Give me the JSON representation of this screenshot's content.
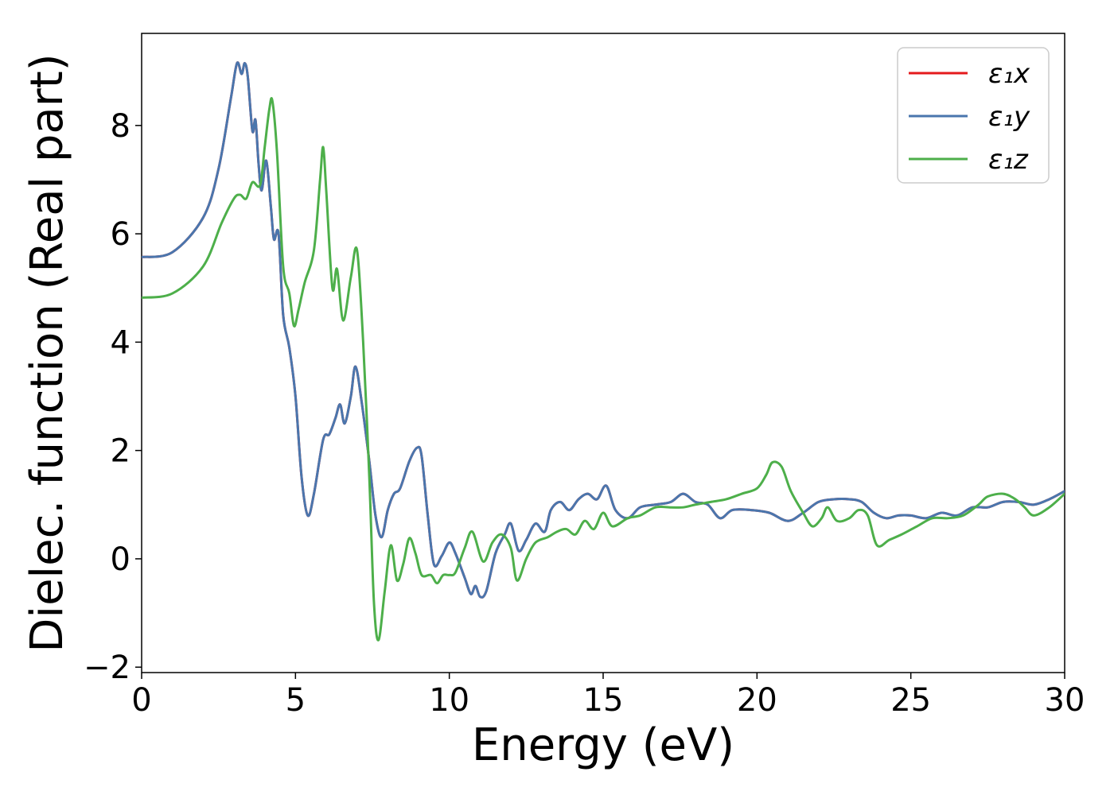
{
  "chart_data": {
    "type": "line",
    "title": "",
    "xlabel": "Energy (eV)",
    "ylabel": "Dielec. function (Real part)",
    "xlim": [
      0,
      30
    ],
    "ylim": [
      -2.1,
      9.7
    ],
    "xticks": [
      0,
      5,
      10,
      15,
      20,
      25,
      30
    ],
    "xtick_labels": [
      "0",
      "5",
      "10",
      "15",
      "20",
      "25",
      "30"
    ],
    "yticks": [
      -2,
      0,
      2,
      4,
      6,
      8
    ],
    "ytick_labels": [
      "−2",
      "0",
      "2",
      "4",
      "6",
      "8"
    ],
    "grid": false,
    "legend_position": "top-right",
    "series": [
      {
        "name": "ε₁x",
        "color": "#e41a1c",
        "points": [
          [
            0,
            5.57
          ],
          [
            1,
            5.66
          ],
          [
            2,
            6.3
          ],
          [
            2.5,
            7.2
          ],
          [
            2.9,
            8.5
          ],
          [
            3.1,
            9.15
          ],
          [
            3.25,
            8.95
          ],
          [
            3.35,
            9.15
          ],
          [
            3.45,
            8.9
          ],
          [
            3.6,
            7.9
          ],
          [
            3.7,
            8.1
          ],
          [
            3.8,
            7.3
          ],
          [
            3.9,
            6.8
          ],
          [
            4.05,
            7.35
          ],
          [
            4.2,
            6.5
          ],
          [
            4.3,
            5.9
          ],
          [
            4.45,
            6.0
          ],
          [
            4.6,
            4.5
          ],
          [
            4.8,
            3.9
          ],
          [
            5.0,
            3.0
          ],
          [
            5.2,
            1.5
          ],
          [
            5.4,
            0.8
          ],
          [
            5.6,
            1.2
          ],
          [
            5.9,
            2.2
          ],
          [
            6.1,
            2.3
          ],
          [
            6.3,
            2.6
          ],
          [
            6.45,
            2.85
          ],
          [
            6.6,
            2.5
          ],
          [
            6.8,
            3.0
          ],
          [
            6.95,
            3.55
          ],
          [
            7.15,
            2.9
          ],
          [
            7.4,
            1.8
          ],
          [
            7.6,
            0.8
          ],
          [
            7.8,
            0.4
          ],
          [
            8.0,
            0.9
          ],
          [
            8.2,
            1.2
          ],
          [
            8.4,
            1.3
          ],
          [
            8.7,
            1.8
          ],
          [
            8.95,
            2.05
          ],
          [
            9.1,
            1.9
          ],
          [
            9.3,
            0.8
          ],
          [
            9.5,
            -0.1
          ],
          [
            9.75,
            0.05
          ],
          [
            10.0,
            0.3
          ],
          [
            10.2,
            0.1
          ],
          [
            10.5,
            -0.35
          ],
          [
            10.7,
            -0.65
          ],
          [
            10.85,
            -0.5
          ],
          [
            11.0,
            -0.7
          ],
          [
            11.2,
            -0.6
          ],
          [
            11.5,
            0.1
          ],
          [
            11.8,
            0.45
          ],
          [
            12.0,
            0.65
          ],
          [
            12.25,
            0.15
          ],
          [
            12.5,
            0.35
          ],
          [
            12.8,
            0.65
          ],
          [
            13.1,
            0.5
          ],
          [
            13.3,
            0.9
          ],
          [
            13.6,
            1.05
          ],
          [
            13.9,
            0.9
          ],
          [
            14.2,
            1.1
          ],
          [
            14.5,
            1.2
          ],
          [
            14.8,
            1.1
          ],
          [
            15.1,
            1.35
          ],
          [
            15.4,
            0.9
          ],
          [
            15.8,
            0.75
          ],
          [
            16.2,
            0.95
          ],
          [
            16.7,
            1.0
          ],
          [
            17.2,
            1.05
          ],
          [
            17.6,
            1.2
          ],
          [
            18.0,
            1.05
          ],
          [
            18.4,
            1.0
          ],
          [
            18.8,
            0.75
          ],
          [
            19.2,
            0.9
          ],
          [
            19.8,
            0.9
          ],
          [
            20.4,
            0.85
          ],
          [
            21.0,
            0.7
          ],
          [
            21.5,
            0.85
          ],
          [
            22.0,
            1.05
          ],
          [
            22.5,
            1.1
          ],
          [
            23.0,
            1.1
          ],
          [
            23.4,
            1.05
          ],
          [
            23.8,
            0.85
          ],
          [
            24.2,
            0.75
          ],
          [
            24.6,
            0.8
          ],
          [
            25.0,
            0.8
          ],
          [
            25.5,
            0.75
          ],
          [
            26.0,
            0.85
          ],
          [
            26.5,
            0.8
          ],
          [
            27.0,
            0.95
          ],
          [
            27.5,
            0.95
          ],
          [
            28.0,
            1.05
          ],
          [
            28.5,
            1.05
          ],
          [
            29.0,
            1.0
          ],
          [
            29.5,
            1.1
          ],
          [
            30.0,
            1.25
          ]
        ]
      },
      {
        "name": "ε₁y",
        "color": "#4a76ad",
        "points": [
          [
            0,
            5.57
          ],
          [
            1,
            5.66
          ],
          [
            2,
            6.3
          ],
          [
            2.5,
            7.2
          ],
          [
            2.9,
            8.5
          ],
          [
            3.1,
            9.15
          ],
          [
            3.25,
            8.95
          ],
          [
            3.35,
            9.15
          ],
          [
            3.45,
            8.9
          ],
          [
            3.6,
            7.9
          ],
          [
            3.7,
            8.1
          ],
          [
            3.8,
            7.3
          ],
          [
            3.9,
            6.8
          ],
          [
            4.05,
            7.35
          ],
          [
            4.2,
            6.5
          ],
          [
            4.3,
            5.9
          ],
          [
            4.45,
            6.0
          ],
          [
            4.6,
            4.5
          ],
          [
            4.8,
            3.9
          ],
          [
            5.0,
            3.0
          ],
          [
            5.2,
            1.5
          ],
          [
            5.4,
            0.8
          ],
          [
            5.6,
            1.2
          ],
          [
            5.9,
            2.2
          ],
          [
            6.1,
            2.3
          ],
          [
            6.3,
            2.6
          ],
          [
            6.45,
            2.85
          ],
          [
            6.6,
            2.5
          ],
          [
            6.8,
            3.0
          ],
          [
            6.95,
            3.55
          ],
          [
            7.15,
            2.9
          ],
          [
            7.4,
            1.8
          ],
          [
            7.6,
            0.8
          ],
          [
            7.8,
            0.4
          ],
          [
            8.0,
            0.9
          ],
          [
            8.2,
            1.2
          ],
          [
            8.4,
            1.3
          ],
          [
            8.7,
            1.8
          ],
          [
            8.95,
            2.05
          ],
          [
            9.1,
            1.9
          ],
          [
            9.3,
            0.8
          ],
          [
            9.5,
            -0.1
          ],
          [
            9.75,
            0.05
          ],
          [
            10.0,
            0.3
          ],
          [
            10.2,
            0.1
          ],
          [
            10.5,
            -0.35
          ],
          [
            10.7,
            -0.65
          ],
          [
            10.85,
            -0.5
          ],
          [
            11.0,
            -0.7
          ],
          [
            11.2,
            -0.6
          ],
          [
            11.5,
            0.1
          ],
          [
            11.8,
            0.45
          ],
          [
            12.0,
            0.65
          ],
          [
            12.25,
            0.15
          ],
          [
            12.5,
            0.35
          ],
          [
            12.8,
            0.65
          ],
          [
            13.1,
            0.5
          ],
          [
            13.3,
            0.9
          ],
          [
            13.6,
            1.05
          ],
          [
            13.9,
            0.9
          ],
          [
            14.2,
            1.1
          ],
          [
            14.5,
            1.2
          ],
          [
            14.8,
            1.1
          ],
          [
            15.1,
            1.35
          ],
          [
            15.4,
            0.9
          ],
          [
            15.8,
            0.75
          ],
          [
            16.2,
            0.95
          ],
          [
            16.7,
            1.0
          ],
          [
            17.2,
            1.05
          ],
          [
            17.6,
            1.2
          ],
          [
            18.0,
            1.05
          ],
          [
            18.4,
            1.0
          ],
          [
            18.8,
            0.75
          ],
          [
            19.2,
            0.9
          ],
          [
            19.8,
            0.9
          ],
          [
            20.4,
            0.85
          ],
          [
            21.0,
            0.7
          ],
          [
            21.5,
            0.85
          ],
          [
            22.0,
            1.05
          ],
          [
            22.5,
            1.1
          ],
          [
            23.0,
            1.1
          ],
          [
            23.4,
            1.05
          ],
          [
            23.8,
            0.85
          ],
          [
            24.2,
            0.75
          ],
          [
            24.6,
            0.8
          ],
          [
            25.0,
            0.8
          ],
          [
            25.5,
            0.75
          ],
          [
            26.0,
            0.85
          ],
          [
            26.5,
            0.8
          ],
          [
            27.0,
            0.95
          ],
          [
            27.5,
            0.95
          ],
          [
            28.0,
            1.05
          ],
          [
            28.5,
            1.05
          ],
          [
            29.0,
            1.0
          ],
          [
            29.5,
            1.1
          ],
          [
            30.0,
            1.25
          ]
        ]
      },
      {
        "name": "ε₁z",
        "color": "#4daf4a",
        "points": [
          [
            0,
            4.82
          ],
          [
            1,
            4.9
          ],
          [
            2,
            5.4
          ],
          [
            2.6,
            6.2
          ],
          [
            3.0,
            6.65
          ],
          [
            3.2,
            6.72
          ],
          [
            3.4,
            6.65
          ],
          [
            3.6,
            6.95
          ],
          [
            3.85,
            6.9
          ],
          [
            4.0,
            7.6
          ],
          [
            4.15,
            8.3
          ],
          [
            4.25,
            8.45
          ],
          [
            4.4,
            7.5
          ],
          [
            4.6,
            5.4
          ],
          [
            4.8,
            4.9
          ],
          [
            4.95,
            4.3
          ],
          [
            5.1,
            4.6
          ],
          [
            5.3,
            5.1
          ],
          [
            5.6,
            5.7
          ],
          [
            5.8,
            7.0
          ],
          [
            5.9,
            7.6
          ],
          [
            6.0,
            6.8
          ],
          [
            6.2,
            5.0
          ],
          [
            6.35,
            5.35
          ],
          [
            6.55,
            4.4
          ],
          [
            6.8,
            5.2
          ],
          [
            7.0,
            5.7
          ],
          [
            7.2,
            4.0
          ],
          [
            7.4,
            1.5
          ],
          [
            7.55,
            -0.8
          ],
          [
            7.7,
            -1.5
          ],
          [
            7.9,
            -0.6
          ],
          [
            8.1,
            0.25
          ],
          [
            8.3,
            -0.4
          ],
          [
            8.5,
            -0.1
          ],
          [
            8.7,
            0.38
          ],
          [
            8.9,
            0.1
          ],
          [
            9.1,
            -0.3
          ],
          [
            9.4,
            -0.3
          ],
          [
            9.6,
            -0.45
          ],
          [
            9.8,
            -0.3
          ],
          [
            10.0,
            -0.3
          ],
          [
            10.2,
            -0.25
          ],
          [
            10.5,
            0.2
          ],
          [
            10.75,
            0.5
          ],
          [
            11.1,
            -0.05
          ],
          [
            11.4,
            0.3
          ],
          [
            11.7,
            0.45
          ],
          [
            12.0,
            0.2
          ],
          [
            12.2,
            -0.4
          ],
          [
            12.5,
            0.0
          ],
          [
            12.8,
            0.3
          ],
          [
            13.2,
            0.4
          ],
          [
            13.5,
            0.5
          ],
          [
            13.8,
            0.55
          ],
          [
            14.1,
            0.45
          ],
          [
            14.4,
            0.7
          ],
          [
            14.7,
            0.55
          ],
          [
            15.0,
            0.85
          ],
          [
            15.3,
            0.6
          ],
          [
            15.8,
            0.75
          ],
          [
            16.2,
            0.8
          ],
          [
            16.7,
            0.95
          ],
          [
            17.2,
            0.95
          ],
          [
            17.6,
            0.95
          ],
          [
            18.0,
            1.0
          ],
          [
            18.5,
            1.05
          ],
          [
            19.0,
            1.1
          ],
          [
            19.5,
            1.2
          ],
          [
            20.0,
            1.3
          ],
          [
            20.3,
            1.55
          ],
          [
            20.5,
            1.78
          ],
          [
            20.8,
            1.7
          ],
          [
            21.1,
            1.25
          ],
          [
            21.5,
            0.85
          ],
          [
            21.8,
            0.6
          ],
          [
            22.1,
            0.75
          ],
          [
            22.3,
            0.95
          ],
          [
            22.6,
            0.7
          ],
          [
            23.0,
            0.75
          ],
          [
            23.3,
            0.9
          ],
          [
            23.6,
            0.8
          ],
          [
            23.9,
            0.25
          ],
          [
            24.3,
            0.35
          ],
          [
            24.7,
            0.45
          ],
          [
            25.2,
            0.6
          ],
          [
            25.7,
            0.75
          ],
          [
            26.2,
            0.75
          ],
          [
            26.7,
            0.8
          ],
          [
            27.2,
            1.0
          ],
          [
            27.5,
            1.15
          ],
          [
            28.0,
            1.2
          ],
          [
            28.4,
            1.1
          ],
          [
            28.7,
            0.95
          ],
          [
            29.0,
            0.8
          ],
          [
            29.5,
            0.95
          ],
          [
            30.0,
            1.2
          ]
        ]
      }
    ]
  }
}
